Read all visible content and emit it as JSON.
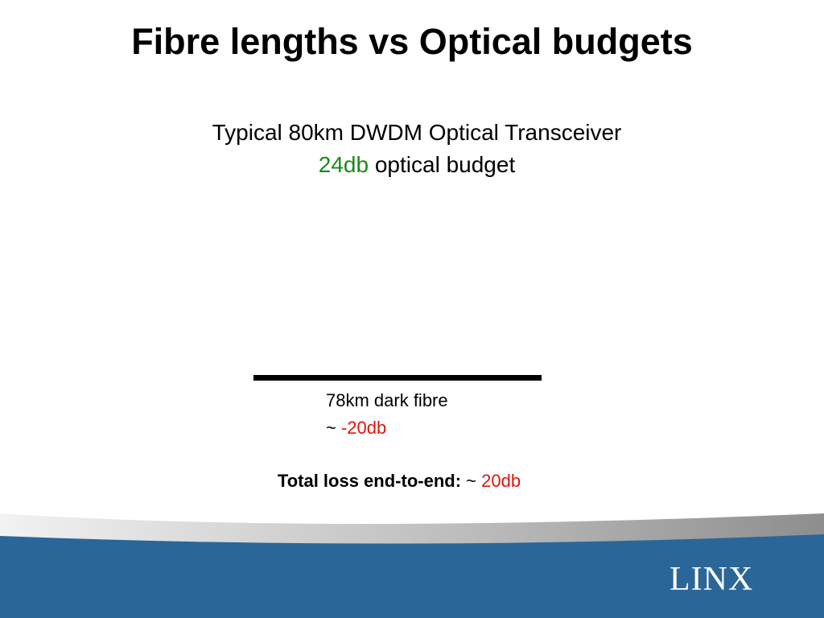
{
  "header": {
    "title": "Fibre lengths vs Optical budgets"
  },
  "transceiver": {
    "line1": "Typical 80km DWDM Optical Transceiver",
    "budget_value": "24db",
    "budget_text": "optical budget"
  },
  "fibre": {
    "label": "78km dark fibre",
    "approx": "~",
    "loss": "-20db"
  },
  "total": {
    "label": "Total loss end-to-end:",
    "approx": "~",
    "loss": "20db"
  },
  "logo": {
    "text": "LINX"
  }
}
